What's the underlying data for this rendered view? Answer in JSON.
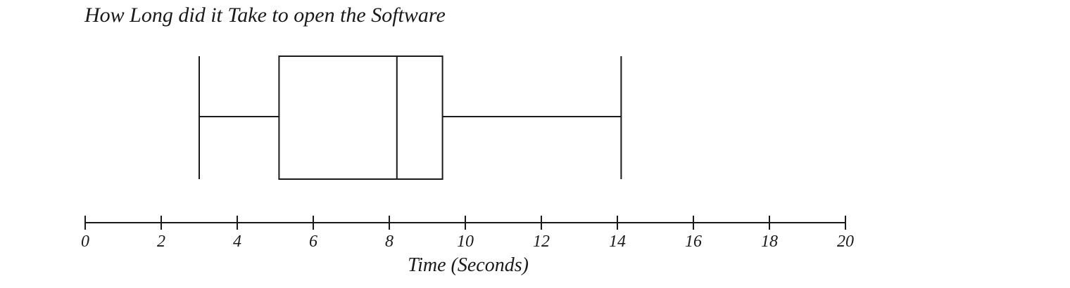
{
  "chart_data": {
    "type": "boxplot",
    "title": "How Long did it Take to open the Software",
    "xlabel": "Time (Seconds)",
    "ylabel": "",
    "xlim": [
      0,
      20
    ],
    "x_ticks": [
      0,
      2,
      4,
      6,
      8,
      10,
      12,
      14,
      16,
      18,
      20
    ],
    "x_tick_labels": [
      "0",
      "2",
      "4",
      "6",
      "8",
      "10",
      "12",
      "14",
      "16",
      "18",
      "20"
    ],
    "box": {
      "min": 3,
      "q1": 5.1,
      "median": 8.2,
      "q3": 9.4,
      "max": 14.1
    },
    "grid": false,
    "orientation": "horizontal"
  }
}
